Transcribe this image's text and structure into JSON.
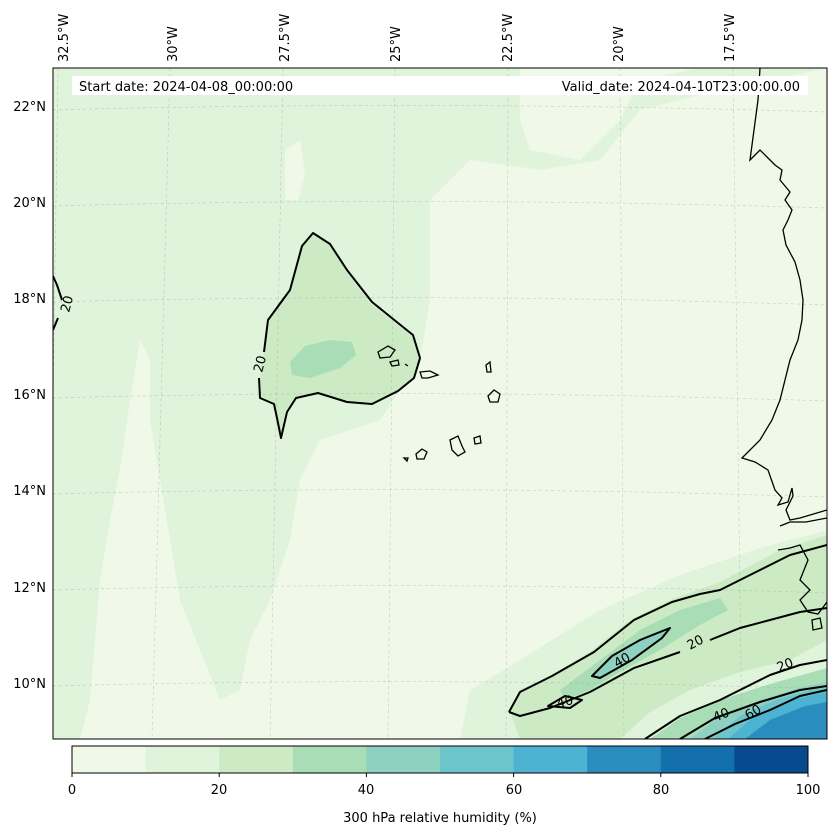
{
  "map": {
    "header": {
      "start_date": "Start date: 2024-04-08_00:00:00",
      "valid_date": "Valid_date: 2024-04-10T23:00:00.00"
    },
    "lon_labels": [
      "32.5°W",
      "30°W",
      "27.5°W",
      "25°W",
      "22.5°W",
      "20°W",
      "17.5°W"
    ],
    "lat_labels": [
      "22°N",
      "20°N",
      "18°N",
      "16°N",
      "14°N",
      "12°N",
      "10°N"
    ],
    "contour_labels": {
      "west_20": "20",
      "plume_20": "20",
      "south_20_a": "20",
      "south_20_b": "20",
      "south_40_a": "40",
      "south_40_b": "40",
      "south_40_c": "40",
      "south_60": "60"
    },
    "colorbar": {
      "title": "300 hPa relative humidity (%)",
      "tick_labels": [
        "0",
        "20",
        "40",
        "60",
        "80",
        "100"
      ],
      "colors": [
        "#f0f9e8",
        "#e0f3db",
        "#ccebc5",
        "#a8ddb5",
        "#8ed1c0",
        "#6bc5cb",
        "#4eb3d3",
        "#2b8cbe",
        "#1470ad",
        "#084a8e"
      ]
    }
  }
}
